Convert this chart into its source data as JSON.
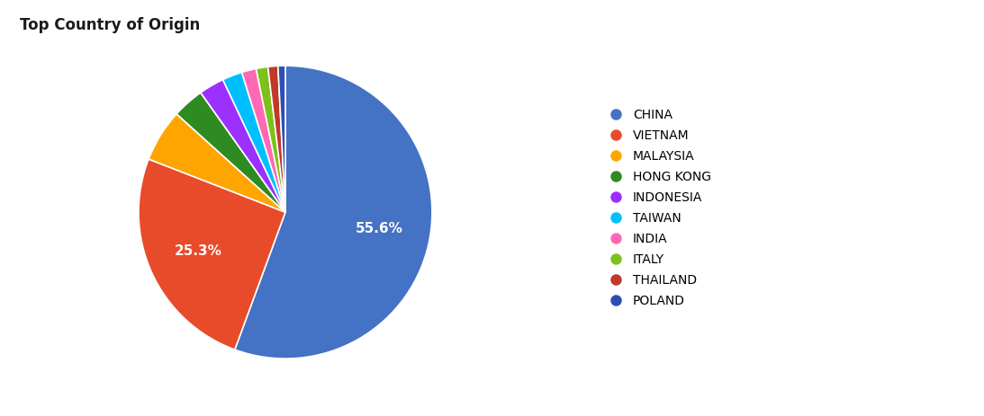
{
  "title": "Top Country of Origin",
  "labels": [
    "CHINA",
    "VIETNAM",
    "MALAYSIA",
    "HONG KONG",
    "INDONESIA",
    "TAIWAN",
    "INDIA",
    "ITALY",
    "THAILAND",
    "POLAND"
  ],
  "values": [
    55.6,
    25.3,
    5.8,
    3.5,
    2.8,
    2.2,
    1.6,
    1.3,
    1.1,
    0.8
  ],
  "colors": [
    "#4472C4",
    "#E84B2A",
    "#FFA500",
    "#2E8B22",
    "#9B30FF",
    "#00BFFF",
    "#FF69B4",
    "#7DC11A",
    "#C0392B",
    "#2F4EB5"
  ],
  "title_fontsize": 12,
  "title_fontweight": "bold",
  "bg_color": "#FFFFFF",
  "text_color": "#1A1A1A",
  "pct_fontsize": 11,
  "legend_fontsize": 10
}
